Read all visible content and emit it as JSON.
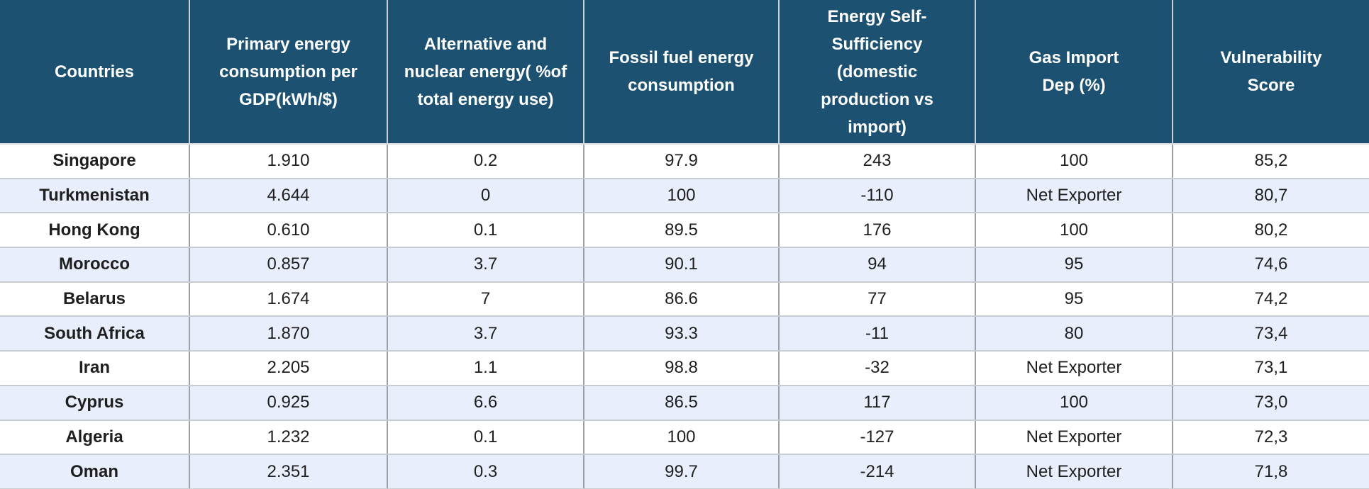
{
  "colors": {
    "header_bg": "#1d5172",
    "header_text": "#ffffff",
    "row_alt_bg": "#e8eefb",
    "body_text": "#1f1f1f"
  },
  "chart_data": {
    "type": "table",
    "title": "",
    "legend": "none",
    "grid": "cell borders on, alternating row shading",
    "columns": [
      "Countries",
      "Primary energy\nconsumption per\nGDP(kWh/$)",
      "Alternative and\nnuclear energy( %of\ntotal energy use)",
      "Fossil fuel energy\nconsumption",
      "Energy Self-\nSufficiency\n(domestic\nproduction vs\nimport)",
      "Gas Import\nDep (%)",
      "Vulnerability\nScore"
    ],
    "rows": [
      [
        "Singapore",
        "1.910",
        "0.2",
        "97.9",
        "243",
        "100",
        "85,2"
      ],
      [
        "Turkmenistan",
        "4.644",
        "0",
        "100",
        "-110",
        "Net Exporter",
        "80,7"
      ],
      [
        "Hong Kong",
        "0.610",
        "0.1",
        "89.5",
        "176",
        "100",
        "80,2"
      ],
      [
        "Morocco",
        "0.857",
        "3.7",
        "90.1",
        "94",
        "95",
        "74,6"
      ],
      [
        "Belarus",
        "1.674",
        "7",
        "86.6",
        "77",
        "95",
        "74,2"
      ],
      [
        "South Africa",
        "1.870",
        "3.7",
        "93.3",
        "-11",
        "80",
        "73,4"
      ],
      [
        "Iran",
        "2.205",
        "1.1",
        "98.8",
        "-32",
        "Net Exporter",
        "73,1"
      ],
      [
        "Cyprus",
        "0.925",
        "6.6",
        "86.5",
        "117",
        "100",
        "73,0"
      ],
      [
        "Algeria",
        "1.232",
        "0.1",
        "100",
        "-127",
        "Net Exporter",
        "72,3"
      ],
      [
        "Oman",
        "2.351",
        "0.3",
        "99.7",
        "-214",
        "Net Exporter",
        "71,8"
      ]
    ]
  }
}
